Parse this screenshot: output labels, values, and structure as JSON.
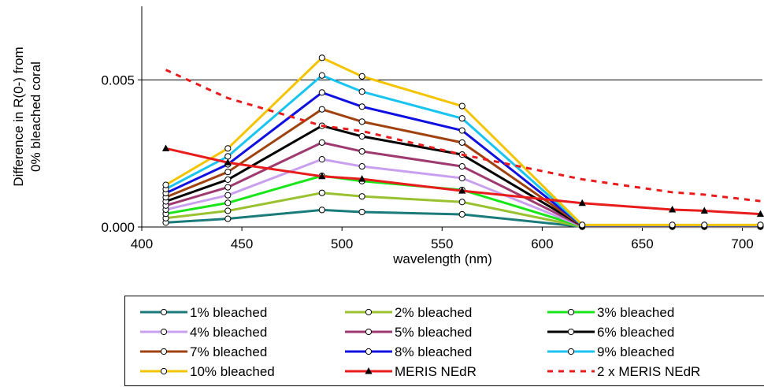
{
  "chart_data": {
    "type": "line",
    "xlabel": "wavelength (nm)",
    "ylabel": [
      "Difference in R(0-) from",
      "0% bleached coral"
    ],
    "xlim": [
      400,
      710
    ],
    "ylim": [
      0,
      0.0075
    ],
    "x_ticks": [
      400,
      450,
      500,
      550,
      600,
      650,
      700
    ],
    "x_tick_labels": [
      "400",
      "450",
      "500",
      "550",
      "600",
      "650",
      "700"
    ],
    "y_ticks": [
      0,
      0.005
    ],
    "y_tick_labels": [
      "0.000",
      "0.005"
    ],
    "grid": "horizontal at 0.005",
    "legend_position": "bottom",
    "series": [
      {
        "name": "1% bleached",
        "color": "#1b7a7a",
        "marker": "circle",
        "x": [
          412,
          443,
          490,
          510,
          560,
          620,
          665,
          681,
          709
        ],
        "y": [
          0.00015,
          0.00028,
          0.00058,
          0.00051,
          0.00043,
          1e-05,
          1e-05,
          1e-05,
          1e-05
        ]
      },
      {
        "name": "2% bleached",
        "color": "#99c130",
        "marker": "circle",
        "x": [
          412,
          443,
          490,
          510,
          560,
          620,
          665,
          681,
          709
        ],
        "y": [
          0.0003,
          0.00055,
          0.00116,
          0.00104,
          0.00085,
          1e-05,
          1e-05,
          1e-05,
          1e-05
        ]
      },
      {
        "name": "3% bleached",
        "color": "#19e619",
        "marker": "circle",
        "x": [
          412,
          443,
          490,
          510,
          560,
          620,
          665,
          681,
          709
        ],
        "y": [
          0.00045,
          0.00082,
          0.00174,
          0.00156,
          0.00126,
          2e-05,
          2e-05,
          2e-05,
          2e-05
        ]
      },
      {
        "name": "4% bleached",
        "color": "#c9a0f0",
        "marker": "circle",
        "x": [
          412,
          443,
          490,
          510,
          560,
          620,
          665,
          681,
          709
        ],
        "y": [
          0.00059,
          0.00108,
          0.0023,
          0.00206,
          0.00166,
          2e-05,
          2e-05,
          2e-05,
          2e-05
        ]
      },
      {
        "name": "5% bleached",
        "color": "#9e3a70",
        "marker": "circle",
        "x": [
          412,
          443,
          490,
          510,
          560,
          620,
          665,
          681,
          709
        ],
        "y": [
          0.00073,
          0.00135,
          0.00287,
          0.00257,
          0.00206,
          3e-05,
          3e-05,
          3e-05,
          3e-05
        ]
      },
      {
        "name": "6% bleached",
        "color": "#000000",
        "marker": "circle",
        "x": [
          412,
          443,
          490,
          510,
          560,
          620,
          665,
          681,
          709
        ],
        "y": [
          0.00087,
          0.00161,
          0.00344,
          0.00308,
          0.00246,
          4e-05,
          4e-05,
          4e-05,
          4e-05
        ]
      },
      {
        "name": "7% bleached",
        "color": "#a0420f",
        "marker": "circle",
        "x": [
          412,
          443,
          490,
          510,
          560,
          620,
          665,
          681,
          709
        ],
        "y": [
          0.00101,
          0.00187,
          0.004,
          0.00358,
          0.00287,
          4e-05,
          4e-05,
          4e-05,
          4e-05
        ]
      },
      {
        "name": "8% bleached",
        "color": "#1010e0",
        "marker": "circle",
        "x": [
          412,
          443,
          490,
          510,
          560,
          620,
          665,
          681,
          709
        ],
        "y": [
          0.00115,
          0.00213,
          0.00457,
          0.00409,
          0.00328,
          5e-05,
          5e-05,
          5e-05,
          5e-05
        ]
      },
      {
        "name": "9% bleached",
        "color": "#19c4f0",
        "marker": "circle",
        "x": [
          412,
          443,
          490,
          510,
          560,
          620,
          665,
          681,
          709
        ],
        "y": [
          0.00129,
          0.0024,
          0.00515,
          0.0046,
          0.00369,
          6e-05,
          6e-05,
          6e-05,
          6e-05
        ]
      },
      {
        "name": "10% bleached",
        "color": "#f5c400",
        "marker": "circle",
        "x": [
          412,
          443,
          490,
          510,
          560,
          620,
          665,
          681,
          709
        ],
        "y": [
          0.00143,
          0.00267,
          0.00575,
          0.00512,
          0.00411,
          7e-05,
          7e-05,
          7e-05,
          7e-05
        ]
      },
      {
        "name": "MERIS NEdR",
        "color": "#e81c1c",
        "marker": "triangle",
        "x": [
          412,
          443,
          490,
          510,
          560,
          620,
          665,
          681,
          709
        ],
        "y": [
          0.00267,
          0.00219,
          0.00172,
          0.00163,
          0.00123,
          0.00081,
          0.00059,
          0.00055,
          0.00044
        ]
      },
      {
        "name": "2 x MERIS NEdR",
        "color": "#e81c1c",
        "marker": "none",
        "dashed": true,
        "x": [
          412,
          443,
          490,
          510,
          560,
          620,
          665,
          681,
          709
        ],
        "y": [
          0.00534,
          0.00438,
          0.00344,
          0.00326,
          0.00246,
          0.00162,
          0.00118,
          0.0011,
          0.00088
        ]
      }
    ]
  }
}
